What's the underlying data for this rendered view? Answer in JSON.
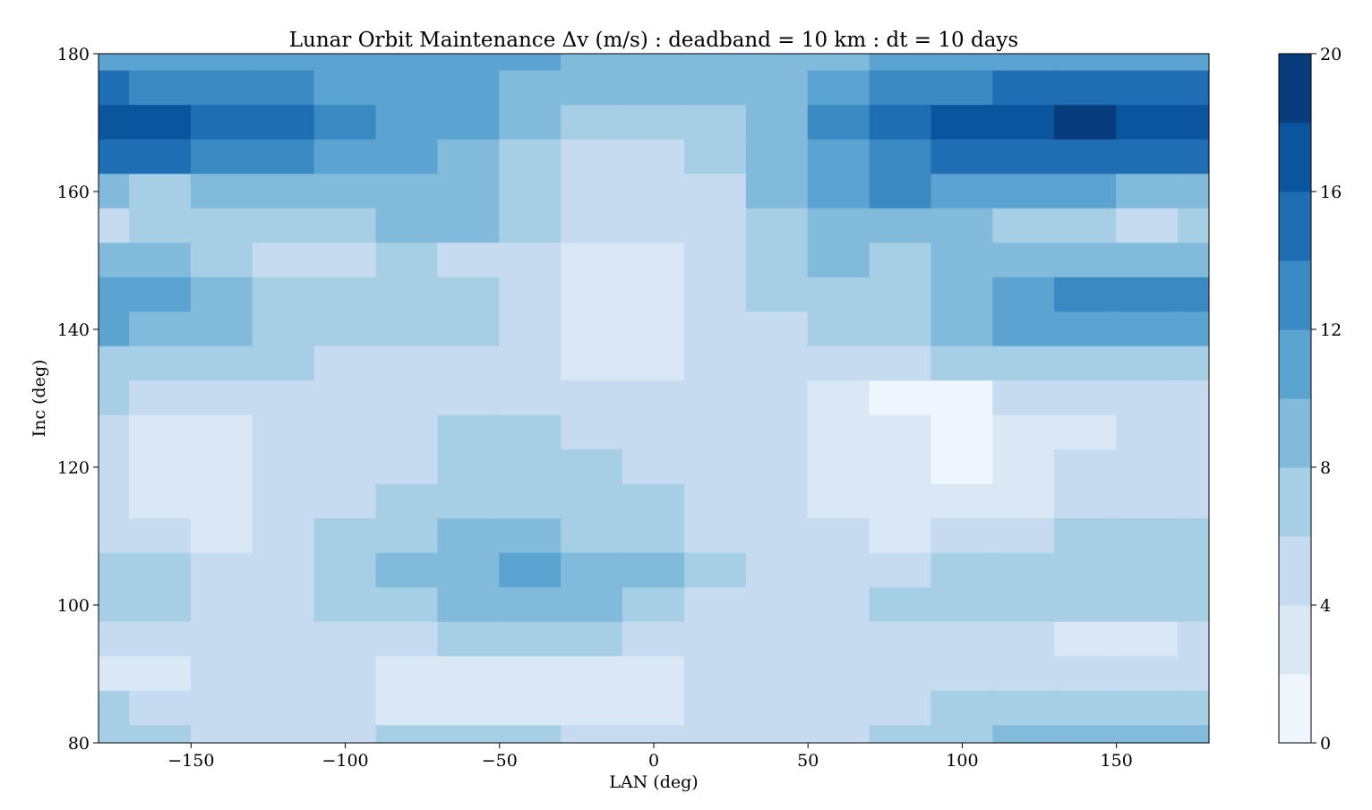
{
  "chart_data": {
    "type": "heatmap",
    "title": "Lunar Orbit Maintenance Δv (m/s) : deadband = 10 km : dt = 10 days",
    "xlabel": "LAN (deg)",
    "ylabel": "Inc (deg)",
    "xlim": [
      -180,
      180
    ],
    "ylim": [
      80,
      180
    ],
    "x_ticks": [
      -150,
      -100,
      -50,
      0,
      50,
      100,
      150
    ],
    "x_tick_labels": [
      "−150",
      "−100",
      "−50",
      "0",
      "50",
      "100",
      "150"
    ],
    "y_ticks": [
      80,
      100,
      120,
      140,
      160,
      180
    ],
    "y_tick_labels": [
      "80",
      "100",
      "120",
      "140",
      "160",
      "180"
    ],
    "colorbar": {
      "levels": [
        0,
        2,
        4,
        6,
        8,
        10,
        12,
        14,
        16,
        18,
        20
      ],
      "ticks": [
        0,
        4,
        8,
        12,
        16,
        20
      ],
      "tick_labels": [
        "0",
        "4",
        "8",
        "12",
        "16",
        "20"
      ],
      "colors": [
        "#eef5fc",
        "#dae8f6",
        "#c6dbef",
        "#a6cee4",
        "#81badb",
        "#5ba3d0",
        "#3a89c2",
        "#1f6eb3",
        "#0b559f",
        "#083c7d"
      ]
    },
    "x": [
      -180,
      -160,
      -140,
      -120,
      -100,
      -80,
      -60,
      -40,
      -20,
      0,
      20,
      40,
      60,
      80,
      100,
      120,
      140,
      160,
      180
    ],
    "y": [
      180,
      175,
      170,
      165,
      160,
      155,
      150,
      145,
      140,
      135,
      130,
      125,
      120,
      115,
      110,
      105,
      100,
      95,
      90,
      85,
      80
    ],
    "z": [
      [
        10,
        10,
        10,
        10,
        10,
        10,
        10,
        10,
        9,
        9,
        9,
        9,
        9,
        10,
        10,
        10,
        10,
        10,
        10
      ],
      [
        14,
        13,
        13,
        12,
        11,
        11,
        10,
        9,
        8,
        8,
        8,
        9,
        11,
        12,
        12,
        14,
        15,
        15,
        15
      ],
      [
        17,
        17,
        15,
        14,
        12,
        11,
        10,
        8,
        7,
        7,
        7,
        9,
        12,
        15,
        17,
        17,
        19,
        17,
        17
      ],
      [
        15,
        14,
        13,
        12,
        11,
        10,
        9,
        7,
        5,
        5,
        6,
        8,
        11,
        13,
        14,
        14,
        14,
        15,
        15
      ],
      [
        8,
        7,
        8,
        9,
        9,
        9,
        9,
        6,
        4,
        5,
        5,
        8,
        10,
        12,
        11,
        11,
        10,
        9,
        9
      ],
      [
        5,
        7,
        7,
        7,
        7,
        8,
        8,
        6,
        5,
        4,
        5,
        7,
        8,
        9,
        8,
        7,
        6,
        5,
        6
      ],
      [
        9,
        8,
        7,
        5,
        5,
        7,
        5,
        4,
        3,
        3,
        4,
        6,
        8,
        7,
        8,
        8,
        9,
        9,
        9
      ],
      [
        11,
        11,
        8,
        7,
        7,
        7,
        6,
        4,
        3,
        3,
        4,
        6,
        6,
        7,
        9,
        10,
        12,
        12,
        12
      ],
      [
        11,
        9,
        8,
        7,
        7,
        7,
        6,
        5,
        3,
        3,
        4,
        5,
        6,
        7,
        9,
        10,
        11,
        11,
        11
      ],
      [
        7,
        7,
        6,
        6,
        5,
        5,
        5,
        4,
        3,
        3,
        4,
        5,
        4,
        4,
        6,
        7,
        7,
        7,
        7
      ],
      [
        6,
        5,
        5,
        5,
        5,
        5,
        5,
        4,
        4,
        4,
        4,
        5,
        3,
        1,
        1,
        4,
        4,
        5,
        5
      ],
      [
        4,
        3,
        3,
        4,
        4,
        5,
        6,
        6,
        5,
        4,
        4,
        4,
        3,
        2,
        1,
        3,
        3,
        4,
        4
      ],
      [
        5,
        3,
        3,
        4,
        4,
        5,
        6,
        6,
        6,
        4,
        4,
        4,
        3,
        2,
        1,
        3,
        4,
        4,
        4
      ],
      [
        5,
        3,
        3,
        4,
        5,
        6,
        7,
        7,
        6,
        6,
        5,
        4,
        3,
        2,
        2,
        3,
        4,
        4,
        4
      ],
      [
        5,
        4,
        3,
        4,
        6,
        7,
        8,
        8,
        7,
        6,
        5,
        4,
        4,
        3,
        5,
        5,
        6,
        6,
        6
      ],
      [
        7,
        6,
        5,
        5,
        6,
        8,
        9,
        10,
        9,
        8,
        6,
        5,
        5,
        5,
        6,
        6,
        6,
        7,
        7
      ],
      [
        6,
        6,
        5,
        5,
        6,
        7,
        8,
        9,
        8,
        7,
        5,
        4,
        5,
        6,
        7,
        6,
        6,
        6,
        6
      ],
      [
        4,
        4,
        4,
        4,
        4,
        5,
        6,
        6,
        6,
        5,
        4,
        4,
        5,
        5,
        4,
        4,
        3,
        3,
        4
      ],
      [
        3,
        3,
        4,
        5,
        4,
        3,
        2,
        2,
        2,
        3,
        4,
        4,
        4,
        4,
        4,
        4,
        4,
        4,
        4
      ],
      [
        6,
        5,
        4,
        4,
        4,
        3,
        3,
        3,
        3,
        3,
        4,
        5,
        5,
        5,
        6,
        6,
        7,
        7,
        7
      ],
      [
        7,
        7,
        5,
        4,
        5,
        6,
        6,
        6,
        5,
        5,
        5,
        5,
        5,
        6,
        7,
        8,
        9,
        9,
        9
      ]
    ]
  }
}
